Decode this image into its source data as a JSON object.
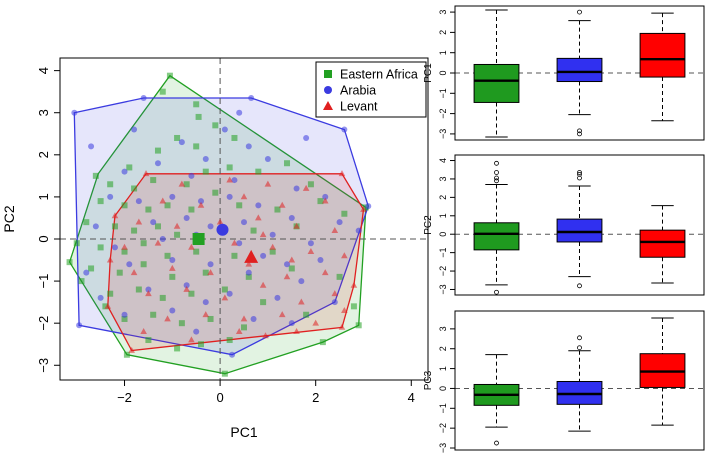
{
  "chart_data": [
    {
      "type": "scatter",
      "title": "",
      "xlabel": "PC1",
      "ylabel": "PC2",
      "xlim": [
        -3.35,
        4.35
      ],
      "ylim": [
        -3.35,
        4.3
      ],
      "xticks": [
        -2,
        0,
        2,
        4
      ],
      "yticks": [
        -3,
        -2,
        -1,
        0,
        1,
        2,
        3,
        4
      ],
      "reference_lines": {
        "x": 0,
        "y": 0,
        "style": "dashed"
      },
      "legend_position": "top-right",
      "series": [
        {
          "name": "Eastern Africa",
          "color": "#22a022",
          "marker": "square",
          "centroid": [
            -0.45,
            0.0
          ],
          "hull": [
            [
              -1.05,
              3.88
            ],
            [
              3.05,
              0.75
            ],
            [
              2.9,
              -2.05
            ],
            [
              2.15,
              -2.45
            ],
            [
              0.1,
              -3.2
            ],
            [
              -1.95,
              -2.75
            ],
            [
              -3.15,
              -0.55
            ],
            [
              -2.55,
              1.55
            ]
          ],
          "points": [
            [
              -1.05,
              3.88
            ],
            [
              -1.2,
              3.5
            ],
            [
              -0.5,
              3.2
            ],
            [
              -0.45,
              2.9
            ],
            [
              -0.1,
              2.7
            ],
            [
              0.3,
              2.4
            ],
            [
              -0.9,
              2.4
            ],
            [
              -0.5,
              2.2
            ],
            [
              -1.3,
              2.1
            ],
            [
              -2.6,
              1.5
            ],
            [
              -2.3,
              1.3
            ],
            [
              -1.8,
              1.2
            ],
            [
              -1.4,
              1.4
            ],
            [
              -0.7,
              1.3
            ],
            [
              -0.3,
              1.6
            ],
            [
              0.2,
              1.7
            ],
            [
              0.8,
              1.6
            ],
            [
              1.4,
              1.8
            ],
            [
              -2.5,
              0.9
            ],
            [
              -2.0,
              0.8
            ],
            [
              -1.5,
              0.7
            ],
            [
              -1.1,
              0.8
            ],
            [
              -0.6,
              0.7
            ],
            [
              0.4,
              0.8
            ],
            [
              1.2,
              0.7
            ],
            [
              2.1,
              0.9
            ],
            [
              2.6,
              0.6
            ],
            [
              -2.8,
              0.4
            ],
            [
              -2.2,
              0.3
            ],
            [
              -1.8,
              0.2
            ],
            [
              -1.3,
              0.3
            ],
            [
              -0.9,
              0.1
            ],
            [
              0.7,
              0.2
            ],
            [
              1.6,
              0.3
            ],
            [
              -3.0,
              -0.1
            ],
            [
              -2.5,
              -0.2
            ],
            [
              -2.0,
              -0.3
            ],
            [
              -1.6,
              -0.1
            ],
            [
              -1.1,
              -0.4
            ],
            [
              -0.5,
              -0.3
            ],
            [
              0.3,
              -0.4
            ],
            [
              1.1,
              -0.3
            ],
            [
              -2.7,
              -0.7
            ],
            [
              -2.1,
              -0.8
            ],
            [
              -1.6,
              -0.6
            ],
            [
              -1.0,
              -0.9
            ],
            [
              -0.3,
              -0.8
            ],
            [
              0.6,
              -0.9
            ],
            [
              1.5,
              -0.7
            ],
            [
              -3.15,
              -0.55
            ],
            [
              -2.9,
              -1.0
            ],
            [
              -2.3,
              -1.3
            ],
            [
              -1.7,
              -1.2
            ],
            [
              -1.2,
              -1.4
            ],
            [
              -0.6,
              -1.3
            ],
            [
              0.1,
              -1.2
            ],
            [
              0.9,
              -1.5
            ],
            [
              -2.0,
              -1.9
            ],
            [
              -1.4,
              -1.8
            ],
            [
              -0.8,
              -2.0
            ],
            [
              -0.2,
              -1.9
            ],
            [
              0.5,
              -2.1
            ],
            [
              1.8,
              -1.8
            ],
            [
              -1.95,
              -2.75
            ],
            [
              -1.5,
              -2.4
            ],
            [
              -0.9,
              -2.6
            ],
            [
              -0.4,
              -2.5
            ],
            [
              0.2,
              -2.4
            ],
            [
              0.1,
              -3.2
            ],
            [
              2.15,
              -2.45
            ],
            [
              2.8,
              -1.6
            ],
            [
              2.9,
              -2.05
            ],
            [
              2.5,
              -0.9
            ],
            [
              3.05,
              0.75
            ],
            [
              1.9,
              1.3
            ],
            [
              -0.1,
              1.1
            ],
            [
              -1.9,
              1.7
            ],
            [
              -2.4,
              -1.6
            ]
          ]
        },
        {
          "name": "Arabia",
          "color": "#3b3be0",
          "marker": "circle",
          "centroid": [
            0.05,
            0.22
          ],
          "hull": [
            [
              -3.05,
              3.0
            ],
            [
              -1.6,
              3.35
            ],
            [
              0.65,
              3.35
            ],
            [
              2.6,
              2.6
            ],
            [
              3.1,
              0.78
            ],
            [
              2.4,
              -1.5
            ],
            [
              0.25,
              -2.75
            ],
            [
              -2.95,
              -2.05
            ]
          ],
          "points": [
            [
              -3.05,
              3.0
            ],
            [
              -1.6,
              3.35
            ],
            [
              0.65,
              3.35
            ],
            [
              2.6,
              2.6
            ],
            [
              3.1,
              0.78
            ],
            [
              -0.8,
              2.3
            ],
            [
              0.1,
              2.6
            ],
            [
              0.6,
              2.2
            ],
            [
              1.0,
              1.9
            ],
            [
              -0.3,
              1.9
            ],
            [
              -1.3,
              1.8
            ],
            [
              -2.0,
              1.6
            ],
            [
              -0.6,
              1.5
            ],
            [
              0.3,
              1.4
            ],
            [
              1.6,
              1.2
            ],
            [
              2.2,
              1.0
            ],
            [
              -2.3,
              1.0
            ],
            [
              -1.7,
              0.9
            ],
            [
              -1.0,
              1.0
            ],
            [
              -0.4,
              0.9
            ],
            [
              0.2,
              1.0
            ],
            [
              0.8,
              0.8
            ],
            [
              1.5,
              0.5
            ],
            [
              2.5,
              0.4
            ],
            [
              -2.6,
              0.3
            ],
            [
              -1.4,
              0.4
            ],
            [
              -0.7,
              0.5
            ],
            [
              -0.2,
              0.3
            ],
            [
              0.5,
              0.4
            ],
            [
              1.1,
              0.1
            ],
            [
              1.9,
              -0.1
            ],
            [
              -2.2,
              -0.2
            ],
            [
              -1.2,
              0.0
            ],
            [
              -0.5,
              0.1
            ],
            [
              0.4,
              -0.1
            ],
            [
              0.9,
              -0.4
            ],
            [
              1.4,
              -0.6
            ],
            [
              2.1,
              -0.5
            ],
            [
              -2.8,
              -0.8
            ],
            [
              -1.9,
              -0.6
            ],
            [
              -1.0,
              -0.5
            ],
            [
              -0.2,
              -0.6
            ],
            [
              0.6,
              -0.8
            ],
            [
              1.7,
              -1.0
            ],
            [
              -2.5,
              -1.4
            ],
            [
              -1.5,
              -1.2
            ],
            [
              -0.7,
              -1.1
            ],
            [
              0.2,
              -1.3
            ],
            [
              1.2,
              -1.4
            ],
            [
              2.4,
              -1.5
            ],
            [
              -2.95,
              -2.05
            ],
            [
              -2.0,
              -1.8
            ],
            [
              -1.0,
              -1.7
            ],
            [
              -0.3,
              -1.5
            ],
            [
              0.7,
              -1.9
            ],
            [
              -0.5,
              -2.2
            ],
            [
              0.25,
              -2.75
            ],
            [
              1.5,
              -2.0
            ],
            [
              2.9,
              0.2
            ],
            [
              -2.7,
              2.2
            ],
            [
              -1.8,
              2.6
            ],
            [
              0.4,
              3.0
            ],
            [
              1.8,
              2.4
            ]
          ]
        },
        {
          "name": "Levant",
          "color": "#e02020",
          "marker": "triangle",
          "centroid": [
            0.65,
            -0.45
          ],
          "hull": [
            [
              -1.55,
              1.55
            ],
            [
              2.55,
              1.55
            ],
            [
              3.0,
              0.7
            ],
            [
              2.8,
              -1.1
            ],
            [
              2.55,
              -2.1
            ],
            [
              0.95,
              -2.3
            ],
            [
              -1.85,
              -2.65
            ],
            [
              -2.35,
              -1.6
            ],
            [
              -2.3,
              -0.5
            ],
            [
              -2.2,
              0.55
            ]
          ],
          "points": [
            [
              -1.55,
              1.55
            ],
            [
              2.55,
              1.55
            ],
            [
              3.0,
              0.7
            ],
            [
              2.8,
              -1.1
            ],
            [
              2.55,
              -2.1
            ],
            [
              0.95,
              -2.3
            ],
            [
              -1.85,
              -2.65
            ],
            [
              -2.35,
              -1.6
            ],
            [
              -2.3,
              -0.5
            ],
            [
              -2.2,
              0.55
            ],
            [
              -0.8,
              1.3
            ],
            [
              0.2,
              1.4
            ],
            [
              1.0,
              1.3
            ],
            [
              1.8,
              1.2
            ],
            [
              -1.2,
              0.9
            ],
            [
              -0.4,
              0.8
            ],
            [
              0.5,
              1.0
            ],
            [
              1.3,
              0.8
            ],
            [
              2.2,
              0.9
            ],
            [
              -1.7,
              0.4
            ],
            [
              -0.9,
              0.3
            ],
            [
              0.0,
              0.4
            ],
            [
              0.8,
              0.5
            ],
            [
              1.6,
              0.3
            ],
            [
              2.4,
              0.2
            ],
            [
              -2.0,
              -0.2
            ],
            [
              -1.3,
              -0.1
            ],
            [
              -0.6,
              -0.2
            ],
            [
              0.3,
              -0.1
            ],
            [
              1.1,
              -0.2
            ],
            [
              1.9,
              -0.3
            ],
            [
              2.6,
              -0.4
            ],
            [
              -1.8,
              -0.8
            ],
            [
              -1.0,
              -0.7
            ],
            [
              -0.2,
              -0.8
            ],
            [
              0.6,
              -0.6
            ],
            [
              1.4,
              -0.9
            ],
            [
              2.2,
              -0.8
            ],
            [
              -1.5,
              -1.3
            ],
            [
              -0.7,
              -1.2
            ],
            [
              0.1,
              -1.4
            ],
            [
              0.9,
              -1.1
            ],
            [
              1.7,
              -1.5
            ],
            [
              2.4,
              -1.3
            ],
            [
              -1.1,
              -1.9
            ],
            [
              -0.3,
              -1.8
            ],
            [
              0.5,
              -1.9
            ],
            [
              1.3,
              -1.8
            ],
            [
              2.0,
              -2.0
            ],
            [
              -1.6,
              -2.2
            ],
            [
              -0.6,
              -2.4
            ],
            [
              0.4,
              -2.2
            ],
            [
              1.6,
              -2.2
            ],
            [
              2.6,
              -1.7
            ],
            [
              0.9,
              0.1
            ],
            [
              1.5,
              -0.5
            ]
          ]
        }
      ]
    },
    {
      "type": "box",
      "title": "",
      "xlabel": "",
      "ylabel": "PC1",
      "ylim": [
        -3.3,
        3.3
      ],
      "yticks": [
        -3,
        -2,
        -1,
        0,
        1,
        2,
        3
      ],
      "reference_line": 0,
      "boxes": [
        {
          "group": "Eastern Africa",
          "color": "#1f9a1f",
          "whisker_low": -3.15,
          "q1": -1.45,
          "median": -0.38,
          "q3": 0.42,
          "whisker_high": 3.1,
          "outliers": []
        },
        {
          "group": "Arabia",
          "color": "#3030f0",
          "whisker_low": -2.05,
          "q1": -0.42,
          "median": 0.05,
          "q3": 0.72,
          "whisker_high": 2.58,
          "outliers": [
            3.0,
            -2.85,
            -3.0
          ]
        },
        {
          "group": "Levant",
          "color": "#ff0000",
          "whisker_low": -2.35,
          "q1": -0.2,
          "median": 0.68,
          "q3": 1.95,
          "whisker_high": 2.95,
          "outliers": []
        }
      ]
    },
    {
      "type": "box",
      "title": "",
      "xlabel": "",
      "ylabel": "PC2",
      "ylim": [
        -3.3,
        4.3
      ],
      "yticks": [
        -3,
        -2,
        -1,
        0,
        1,
        2,
        3,
        4
      ],
      "reference_line": 0,
      "boxes": [
        {
          "group": "Eastern Africa",
          "color": "#1f9a1f",
          "whisker_low": -2.75,
          "q1": -0.85,
          "median": 0.02,
          "q3": 0.62,
          "whisker_high": 2.7,
          "outliers": [
            3.85,
            3.35,
            3.05,
            2.9,
            -3.15
          ]
        },
        {
          "group": "Arabia",
          "color": "#3030f0",
          "whisker_low": -2.3,
          "q1": -0.42,
          "median": 0.12,
          "q3": 0.82,
          "whisker_high": 2.62,
          "outliers": [
            3.35,
            3.25,
            3.05,
            -2.8
          ]
        },
        {
          "group": "Levant",
          "color": "#ff0000",
          "whisker_low": -2.65,
          "q1": -1.25,
          "median": -0.42,
          "q3": 0.22,
          "whisker_high": 1.55,
          "outliers": []
        }
      ]
    },
    {
      "type": "box",
      "title": "",
      "xlabel": "",
      "ylabel": "PC3",
      "ylim": [
        -3.1,
        3.9
      ],
      "yticks": [
        -3,
        -2,
        -1,
        0,
        1,
        2,
        3
      ],
      "reference_line": 0,
      "boxes": [
        {
          "group": "Eastern Africa",
          "color": "#1f9a1f",
          "whisker_low": -1.95,
          "q1": -0.85,
          "median": -0.32,
          "q3": 0.2,
          "whisker_high": 1.7,
          "outliers": [
            -2.75
          ]
        },
        {
          "group": "Arabia",
          "color": "#3030f0",
          "whisker_low": -2.15,
          "q1": -0.8,
          "median": -0.28,
          "q3": 0.35,
          "whisker_high": 1.9,
          "outliers": [
            2.05,
            2.55
          ]
        },
        {
          "group": "Levant",
          "color": "#ff0000",
          "whisker_low": -1.85,
          "q1": 0.05,
          "median": 0.85,
          "q3": 1.75,
          "whisker_high": 3.55,
          "outliers": []
        }
      ]
    }
  ]
}
